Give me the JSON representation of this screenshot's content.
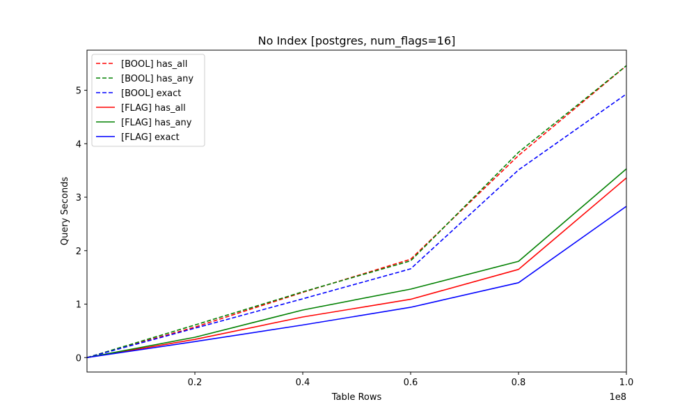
{
  "chart_data": {
    "type": "line",
    "title": "No Index [postgres, num_flags=16]",
    "xlabel": "Table Rows",
    "ylabel": "Query Seconds",
    "x_offset_label": "1e8",
    "xlim": [
      0,
      1.0
    ],
    "ylim": [
      -0.27,
      5.75
    ],
    "x_ticks": [
      0.2,
      0.4,
      0.6,
      0.8,
      1.0
    ],
    "x_tick_labels": [
      "0.2",
      "0.4",
      "0.6",
      "0.8",
      "1.0"
    ],
    "y_ticks": [
      0,
      1,
      2,
      3,
      4,
      5
    ],
    "y_tick_labels": [
      "0",
      "1",
      "2",
      "3",
      "4",
      "5"
    ],
    "grid": false,
    "legend_position": "upper-left",
    "x": [
      0.0,
      0.2,
      0.4,
      0.6,
      0.8,
      1.0
    ],
    "series": [
      {
        "name": "[BOOL] has_all",
        "color": "#ff0000",
        "dash": true,
        "values": [
          0.0,
          0.57,
          1.22,
          1.84,
          3.78,
          5.46
        ]
      },
      {
        "name": "[BOOL] has_any",
        "color": "#008000",
        "dash": true,
        "values": [
          0.0,
          0.61,
          1.23,
          1.81,
          3.84,
          5.46
        ]
      },
      {
        "name": "[BOOL] exact",
        "color": "#0000ff",
        "dash": true,
        "values": [
          0.0,
          0.55,
          1.1,
          1.66,
          3.51,
          4.93
        ]
      },
      {
        "name": "[FLAG] has_all",
        "color": "#ff0000",
        "dash": false,
        "values": [
          0.0,
          0.34,
          0.76,
          1.09,
          1.65,
          3.36
        ]
      },
      {
        "name": "[FLAG] has_any",
        "color": "#008000",
        "dash": false,
        "values": [
          0.0,
          0.38,
          0.89,
          1.28,
          1.8,
          3.53
        ]
      },
      {
        "name": "[FLAG] exact",
        "color": "#0000ff",
        "dash": false,
        "values": [
          0.0,
          0.3,
          0.61,
          0.94,
          1.4,
          2.83
        ]
      }
    ]
  }
}
